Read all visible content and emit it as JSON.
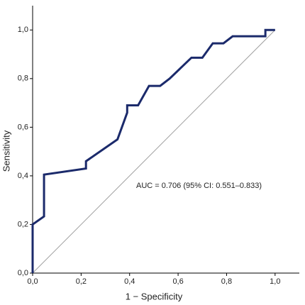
{
  "chart_data": {
    "type": "line",
    "x_label": "1 − Specificity",
    "y_label": "Sensitivity",
    "annotation": "AUC = 0.706 (95% CI: 0.551–0.833)",
    "xlim": [
      0,
      1.1
    ],
    "ylim": [
      0,
      1.1
    ],
    "xticks": [
      {
        "value": 0,
        "label": "0,0"
      },
      {
        "value": 0.2,
        "label": "0,2"
      },
      {
        "value": 0.4,
        "label": "0,4"
      },
      {
        "value": 0.6,
        "label": "0,6"
      },
      {
        "value": 0.8,
        "label": "0,8"
      },
      {
        "value": 1.0,
        "label": "1,0"
      }
    ],
    "yticks": [
      {
        "value": 0,
        "label": "0,0"
      },
      {
        "value": 0.2,
        "label": "0,2"
      },
      {
        "value": 0.4,
        "label": "0,4"
      },
      {
        "value": 0.6,
        "label": "0,6"
      },
      {
        "value": 0.8,
        "label": "0,8"
      },
      {
        "value": 1.0,
        "label": "1,0"
      }
    ],
    "series": [
      {
        "color": "#1b2a6b",
        "x": [
          0,
          0,
          0.047,
          0.047,
          0.22,
          0.22,
          0.35,
          0.39,
          0.39,
          0.435,
          0.48,
          0.526,
          0.565,
          0.655,
          0.7,
          0.743,
          0.787,
          0.825,
          0.96,
          0.96,
          1.0
        ],
        "values": [
          0,
          0.2,
          0.233,
          0.405,
          0.43,
          0.46,
          0.55,
          0.66,
          0.69,
          0.69,
          0.77,
          0.77,
          0.8,
          0.886,
          0.886,
          0.945,
          0.945,
          0.974,
          0.974,
          1.0,
          1.0
        ]
      }
    ],
    "reference_color": "#a0a0a0"
  }
}
